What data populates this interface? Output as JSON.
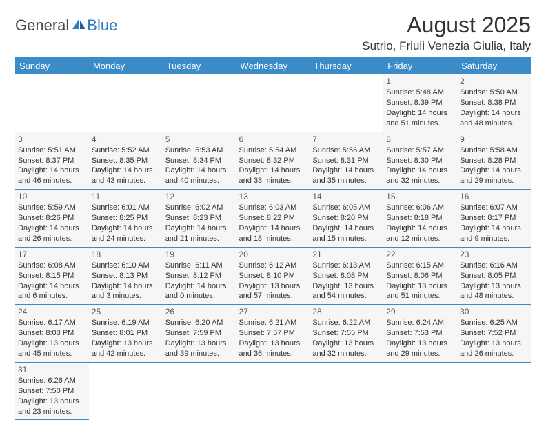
{
  "logo": {
    "text1": "General",
    "text2": "Blue"
  },
  "title": "August 2025",
  "location": "Sutrio, Friuli Venezia Giulia, Italy",
  "colors": {
    "header_bg": "#3b8bc9",
    "header_text": "#ffffff",
    "cell_bg": "#f6f6f6",
    "border": "#3b8bc9",
    "logo_gray": "#4a4a4a",
    "logo_blue": "#2e7cc0"
  },
  "day_headers": [
    "Sunday",
    "Monday",
    "Tuesday",
    "Wednesday",
    "Thursday",
    "Friday",
    "Saturday"
  ],
  "weeks": [
    [
      null,
      null,
      null,
      null,
      null,
      {
        "n": "1",
        "sr": "5:48 AM",
        "ss": "8:39 PM",
        "dl": "14 hours and 51 minutes."
      },
      {
        "n": "2",
        "sr": "5:50 AM",
        "ss": "8:38 PM",
        "dl": "14 hours and 48 minutes."
      }
    ],
    [
      {
        "n": "3",
        "sr": "5:51 AM",
        "ss": "8:37 PM",
        "dl": "14 hours and 46 minutes."
      },
      {
        "n": "4",
        "sr": "5:52 AM",
        "ss": "8:35 PM",
        "dl": "14 hours and 43 minutes."
      },
      {
        "n": "5",
        "sr": "5:53 AM",
        "ss": "8:34 PM",
        "dl": "14 hours and 40 minutes."
      },
      {
        "n": "6",
        "sr": "5:54 AM",
        "ss": "8:32 PM",
        "dl": "14 hours and 38 minutes."
      },
      {
        "n": "7",
        "sr": "5:56 AM",
        "ss": "8:31 PM",
        "dl": "14 hours and 35 minutes."
      },
      {
        "n": "8",
        "sr": "5:57 AM",
        "ss": "8:30 PM",
        "dl": "14 hours and 32 minutes."
      },
      {
        "n": "9",
        "sr": "5:58 AM",
        "ss": "8:28 PM",
        "dl": "14 hours and 29 minutes."
      }
    ],
    [
      {
        "n": "10",
        "sr": "5:59 AM",
        "ss": "8:26 PM",
        "dl": "14 hours and 26 minutes."
      },
      {
        "n": "11",
        "sr": "6:01 AM",
        "ss": "8:25 PM",
        "dl": "14 hours and 24 minutes."
      },
      {
        "n": "12",
        "sr": "6:02 AM",
        "ss": "8:23 PM",
        "dl": "14 hours and 21 minutes."
      },
      {
        "n": "13",
        "sr": "6:03 AM",
        "ss": "8:22 PM",
        "dl": "14 hours and 18 minutes."
      },
      {
        "n": "14",
        "sr": "6:05 AM",
        "ss": "8:20 PM",
        "dl": "14 hours and 15 minutes."
      },
      {
        "n": "15",
        "sr": "6:06 AM",
        "ss": "8:18 PM",
        "dl": "14 hours and 12 minutes."
      },
      {
        "n": "16",
        "sr": "6:07 AM",
        "ss": "8:17 PM",
        "dl": "14 hours and 9 minutes."
      }
    ],
    [
      {
        "n": "17",
        "sr": "6:08 AM",
        "ss": "8:15 PM",
        "dl": "14 hours and 6 minutes."
      },
      {
        "n": "18",
        "sr": "6:10 AM",
        "ss": "8:13 PM",
        "dl": "14 hours and 3 minutes."
      },
      {
        "n": "19",
        "sr": "6:11 AM",
        "ss": "8:12 PM",
        "dl": "14 hours and 0 minutes."
      },
      {
        "n": "20",
        "sr": "6:12 AM",
        "ss": "8:10 PM",
        "dl": "13 hours and 57 minutes."
      },
      {
        "n": "21",
        "sr": "6:13 AM",
        "ss": "8:08 PM",
        "dl": "13 hours and 54 minutes."
      },
      {
        "n": "22",
        "sr": "6:15 AM",
        "ss": "8:06 PM",
        "dl": "13 hours and 51 minutes."
      },
      {
        "n": "23",
        "sr": "6:16 AM",
        "ss": "8:05 PM",
        "dl": "13 hours and 48 minutes."
      }
    ],
    [
      {
        "n": "24",
        "sr": "6:17 AM",
        "ss": "8:03 PM",
        "dl": "13 hours and 45 minutes."
      },
      {
        "n": "25",
        "sr": "6:19 AM",
        "ss": "8:01 PM",
        "dl": "13 hours and 42 minutes."
      },
      {
        "n": "26",
        "sr": "6:20 AM",
        "ss": "7:59 PM",
        "dl": "13 hours and 39 minutes."
      },
      {
        "n": "27",
        "sr": "6:21 AM",
        "ss": "7:57 PM",
        "dl": "13 hours and 36 minutes."
      },
      {
        "n": "28",
        "sr": "6:22 AM",
        "ss": "7:55 PM",
        "dl": "13 hours and 32 minutes."
      },
      {
        "n": "29",
        "sr": "6:24 AM",
        "ss": "7:53 PM",
        "dl": "13 hours and 29 minutes."
      },
      {
        "n": "30",
        "sr": "6:25 AM",
        "ss": "7:52 PM",
        "dl": "13 hours and 26 minutes."
      }
    ],
    [
      {
        "n": "31",
        "sr": "6:26 AM",
        "ss": "7:50 PM",
        "dl": "13 hours and 23 minutes."
      },
      null,
      null,
      null,
      null,
      null,
      null
    ]
  ],
  "labels": {
    "sunrise": "Sunrise:",
    "sunset": "Sunset:",
    "daylight": "Daylight:"
  }
}
